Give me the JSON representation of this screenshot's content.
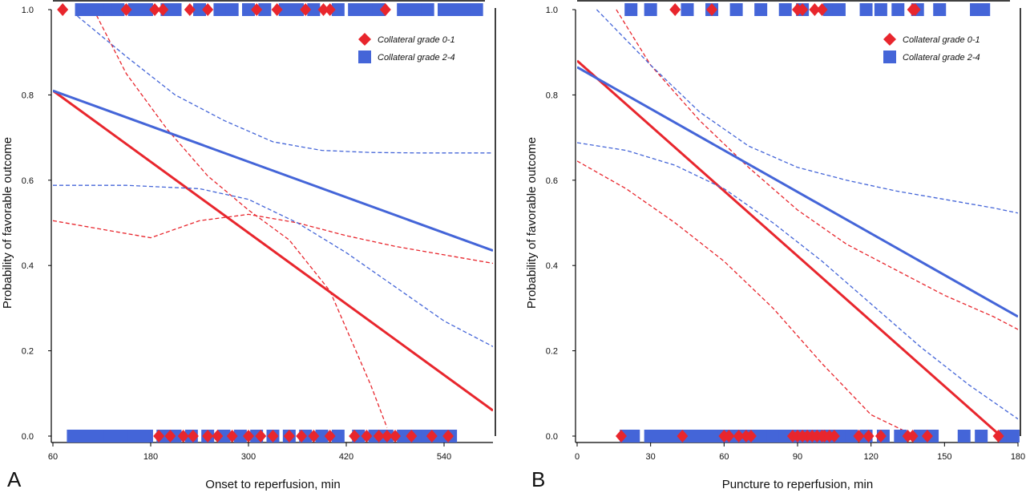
{
  "chart_data": [
    {
      "type": "line",
      "panel_label": "A",
      "xlabel": "Onset to reperfusion, min",
      "ylabel": "Probability of favorable outcome",
      "xlim": [
        60,
        600
      ],
      "ylim": [
        0,
        1
      ],
      "xticks": [
        60,
        180,
        300,
        420,
        540
      ],
      "yticks": [
        "0.0",
        "0.2",
        "0.4",
        "0.6",
        "0.8",
        "1.0"
      ],
      "legend_position": "top-right",
      "series": [
        {
          "name": "Collateral grade 0-1",
          "color": "#e8262d",
          "style": "solid",
          "x": [
            60,
            600
          ],
          "y": [
            0.81,
            0.06
          ]
        },
        {
          "name": "",
          "color": "#e8262d",
          "style": "dashed",
          "x": [
            110,
            150,
            200,
            250,
            300,
            350,
            400,
            450,
            470
          ],
          "y": [
            1.0,
            0.85,
            0.72,
            0.61,
            0.53,
            0.46,
            0.34,
            0.12,
            0.02
          ]
        },
        {
          "name": "",
          "color": "#e8262d",
          "style": "dashed",
          "x": [
            60,
            120,
            180,
            240,
            300,
            360,
            420,
            480,
            540,
            600
          ],
          "y": [
            0.505,
            0.485,
            0.465,
            0.505,
            0.52,
            0.5,
            0.47,
            0.445,
            0.425,
            0.405
          ]
        },
        {
          "name": "Collateral grade 2-4",
          "color": "#4465d8",
          "style": "solid",
          "x": [
            60,
            600
          ],
          "y": [
            0.81,
            0.435
          ]
        },
        {
          "name": "",
          "color": "#4465d8",
          "style": "dashed",
          "x": [
            90,
            150,
            210,
            270,
            330,
            390,
            450,
            510,
            570,
            600
          ],
          "y": [
            0.985,
            0.89,
            0.8,
            0.74,
            0.69,
            0.67,
            0.665,
            0.664,
            0.664,
            0.664
          ]
        },
        {
          "name": "",
          "color": "#4465d8",
          "style": "dashed",
          "x": [
            60,
            150,
            240,
            300,
            360,
            420,
            480,
            540,
            600
          ],
          "y": [
            0.588,
            0.588,
            0.58,
            0.555,
            0.5,
            0.43,
            0.35,
            0.27,
            0.21
          ]
        }
      ],
      "rug": {
        "grade_0_1_top": [
          72,
          150,
          185,
          195,
          228,
          250,
          310,
          335,
          370,
          392,
          400,
          468
        ],
        "grade_2_4_top": [
          95,
          108,
          120,
          130,
          140,
          160,
          175,
          200,
          210,
          240,
          265,
          280,
          300,
          320,
          345,
          360,
          380,
          410,
          430,
          445,
          460,
          490,
          505,
          520,
          540,
          555,
          568,
          580
        ],
        "grade_0_1_bottom": [
          190,
          204,
          220,
          232,
          250,
          262,
          280,
          300,
          315,
          330,
          350,
          365,
          380,
          400,
          430,
          445,
          460,
          470,
          480,
          500,
          525,
          545
        ],
        "grade_2_4_bottom": [
          85,
          95,
          105,
          118,
          130,
          145,
          160,
          175,
          195,
          210,
          230,
          250,
          270,
          290,
          310,
          330,
          350,
          370,
          390,
          410,
          435,
          455,
          470,
          490,
          505,
          520,
          535,
          548
        ]
      }
    },
    {
      "type": "line",
      "panel_label": "B",
      "xlabel": "Puncture to reperfusion, min",
      "ylabel": "Probability of favorable outcome",
      "xlim": [
        0,
        180
      ],
      "ylim": [
        0,
        1
      ],
      "xticks": [
        0,
        30,
        60,
        90,
        120,
        150,
        180
      ],
      "yticks": [
        "0.0",
        "0.2",
        "0.4",
        "0.6",
        "0.8",
        "1.0"
      ],
      "legend_position": "top-right",
      "series": [
        {
          "name": "Collateral grade 0-1",
          "color": "#e8262d",
          "style": "solid",
          "x": [
            0,
            173
          ],
          "y": [
            0.88,
            0.0
          ]
        },
        {
          "name": "",
          "color": "#e8262d",
          "style": "dashed",
          "x": [
            16,
            30,
            50,
            70,
            90,
            110,
            130,
            150,
            170,
            180
          ],
          "y": [
            1.0,
            0.87,
            0.74,
            0.63,
            0.53,
            0.45,
            0.39,
            0.33,
            0.28,
            0.25
          ]
        },
        {
          "name": "",
          "color": "#e8262d",
          "style": "dashed",
          "x": [
            0,
            20,
            40,
            60,
            80,
            100,
            120,
            138
          ],
          "y": [
            0.645,
            0.58,
            0.5,
            0.41,
            0.3,
            0.17,
            0.05,
            0.0
          ]
        },
        {
          "name": "Collateral grade 2-4",
          "color": "#4465d8",
          "style": "solid",
          "x": [
            0,
            180
          ],
          "y": [
            0.865,
            0.28
          ]
        },
        {
          "name": "",
          "color": "#4465d8",
          "style": "dashed",
          "x": [
            8,
            30,
            50,
            70,
            90,
            110,
            130,
            150,
            170,
            180
          ],
          "y": [
            1.0,
            0.87,
            0.76,
            0.68,
            0.63,
            0.6,
            0.575,
            0.555,
            0.535,
            0.523
          ]
        },
        {
          "name": "",
          "color": "#4465d8",
          "style": "dashed",
          "x": [
            0,
            20,
            40,
            60,
            80,
            100,
            120,
            140,
            160,
            180
          ],
          "y": [
            0.688,
            0.67,
            0.635,
            0.58,
            0.5,
            0.41,
            0.31,
            0.21,
            0.12,
            0.04
          ]
        }
      ],
      "rug": {
        "grade_0_1_top": [
          40,
          55,
          90,
          92,
          97,
          100,
          137,
          138
        ],
        "grade_2_4_top": [
          22,
          30,
          45,
          55,
          65,
          75,
          85,
          92,
          103,
          107,
          118,
          124,
          131,
          139,
          148,
          163,
          166
        ],
        "grade_0_1_bottom": [
          18,
          43,
          60,
          62,
          66,
          69,
          71,
          88,
          90,
          92,
          94,
          96,
          98,
          100,
          101,
          103,
          105,
          115,
          119,
          124,
          135,
          137,
          143,
          172
        ],
        "grade_2_4_bottom": [
          20,
          23,
          30,
          35,
          40,
          45,
          50,
          55,
          60,
          65,
          70,
          75,
          80,
          85,
          90,
          95,
          100,
          105,
          108,
          112,
          118,
          125,
          132,
          140,
          145,
          158,
          165,
          175,
          178
        ]
      }
    }
  ]
}
